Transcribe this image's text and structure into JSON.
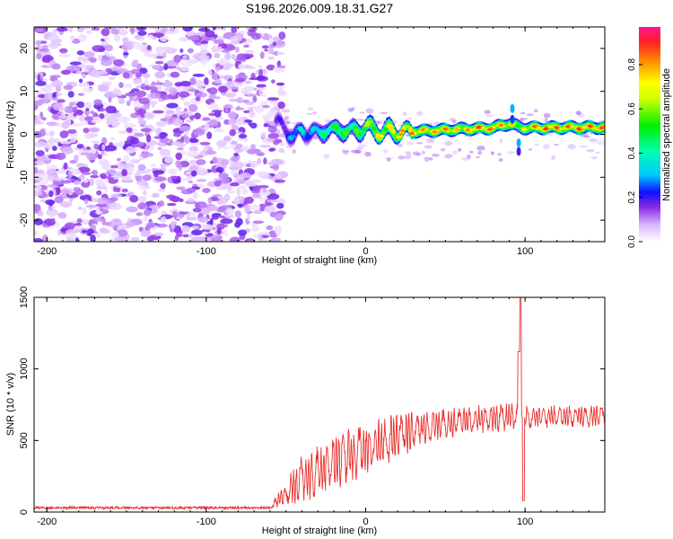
{
  "title": "S196.2026.009.18.31.G27",
  "chart_data": [
    {
      "type": "heatmap",
      "xlabel": "Height of straight line (km)",
      "ylabel": "Frequency (Hz)",
      "xlim": [
        -208,
        150
      ],
      "ylim": [
        -25,
        25
      ],
      "x_ticks": [
        -200,
        -100,
        0,
        100
      ],
      "y_ticks": [
        -20,
        -10,
        0,
        10,
        20
      ],
      "colorbar": {
        "label": "Normalized spectral amplitude",
        "range": [
          0,
          0.97
        ],
        "ticks": [
          0.0,
          0.2,
          0.4,
          0.6,
          0.8
        ]
      },
      "noise_region": {
        "x_range": [
          -208,
          -52
        ],
        "freq_range": [
          -25,
          25
        ]
      },
      "ridge": [
        {
          "x": -55,
          "y": 2.5,
          "v": 0.2
        },
        {
          "x": -50,
          "y": 1.5,
          "v": 0.25
        },
        {
          "x": -45,
          "y": -1.0,
          "v": 0.35
        },
        {
          "x": -40,
          "y": 1.0,
          "v": 0.4
        },
        {
          "x": -35,
          "y": 0.5,
          "v": 0.3
        },
        {
          "x": -30,
          "y": 0.0,
          "v": 0.45
        },
        {
          "x": -25,
          "y": 1.5,
          "v": 0.5
        },
        {
          "x": -20,
          "y": 0.5,
          "v": 0.55
        },
        {
          "x": -15,
          "y": 1.5,
          "v": 0.65
        },
        {
          "x": -10,
          "y": 0.5,
          "v": 0.55
        },
        {
          "x": -5,
          "y": 1.0,
          "v": 0.6
        },
        {
          "x": 0,
          "y": 1.8,
          "v": 0.7
        },
        {
          "x": 5,
          "y": 1.0,
          "v": 0.75
        },
        {
          "x": 10,
          "y": 0.5,
          "v": 0.8
        },
        {
          "x": 15,
          "y": 0.8,
          "v": 0.75
        },
        {
          "x": 20,
          "y": 0.5,
          "v": 0.85
        },
        {
          "x": 30,
          "y": 0.7,
          "v": 0.9
        },
        {
          "x": 40,
          "y": 0.8,
          "v": 0.85
        },
        {
          "x": 50,
          "y": 1.0,
          "v": 0.9
        },
        {
          "x": 60,
          "y": 1.2,
          "v": 0.8
        },
        {
          "x": 70,
          "y": 1.3,
          "v": 0.95
        },
        {
          "x": 80,
          "y": 1.5,
          "v": 0.9
        },
        {
          "x": 90,
          "y": 2.5,
          "v": 0.85
        },
        {
          "x": 98,
          "y": 1.5,
          "v": 0.7
        },
        {
          "x": 105,
          "y": 1.5,
          "v": 0.9
        },
        {
          "x": 115,
          "y": 1.5,
          "v": 0.95
        },
        {
          "x": 125,
          "y": 1.6,
          "v": 0.9
        },
        {
          "x": 135,
          "y": 1.6,
          "v": 0.95
        },
        {
          "x": 150,
          "y": 1.6,
          "v": 0.9
        }
      ]
    },
    {
      "type": "line",
      "xlabel": "Height of straight line (km)",
      "ylabel": "SNR (10 * v/v)",
      "xlim": [
        -208,
        150
      ],
      "ylim": [
        0,
        1500
      ],
      "x_ticks": [
        -200,
        -100,
        0,
        100
      ],
      "y_ticks": [
        0,
        500,
        1000,
        1500
      ],
      "color": "#e8312e",
      "envelope": [
        {
          "x": -208,
          "base": 30,
          "amp": 15
        },
        {
          "x": -60,
          "base": 30,
          "amp": 15
        },
        {
          "x": -40,
          "base": 170,
          "amp": 230
        },
        {
          "x": -20,
          "base": 280,
          "amp": 280
        },
        {
          "x": 0,
          "base": 380,
          "amp": 260
        },
        {
          "x": 20,
          "base": 480,
          "amp": 220
        },
        {
          "x": 40,
          "base": 560,
          "amp": 160
        },
        {
          "x": 60,
          "base": 600,
          "amp": 140
        },
        {
          "x": 80,
          "base": 620,
          "amp": 140
        },
        {
          "x": 95,
          "base": 630,
          "amp": 150
        },
        {
          "x": 110,
          "base": 640,
          "amp": 110
        },
        {
          "x": 150,
          "base": 645,
          "amp": 105
        }
      ],
      "features": [
        {
          "x": 97,
          "y": 1500
        },
        {
          "x": 99,
          "y": 80
        },
        {
          "x": 96,
          "y": 1120
        }
      ]
    }
  ]
}
